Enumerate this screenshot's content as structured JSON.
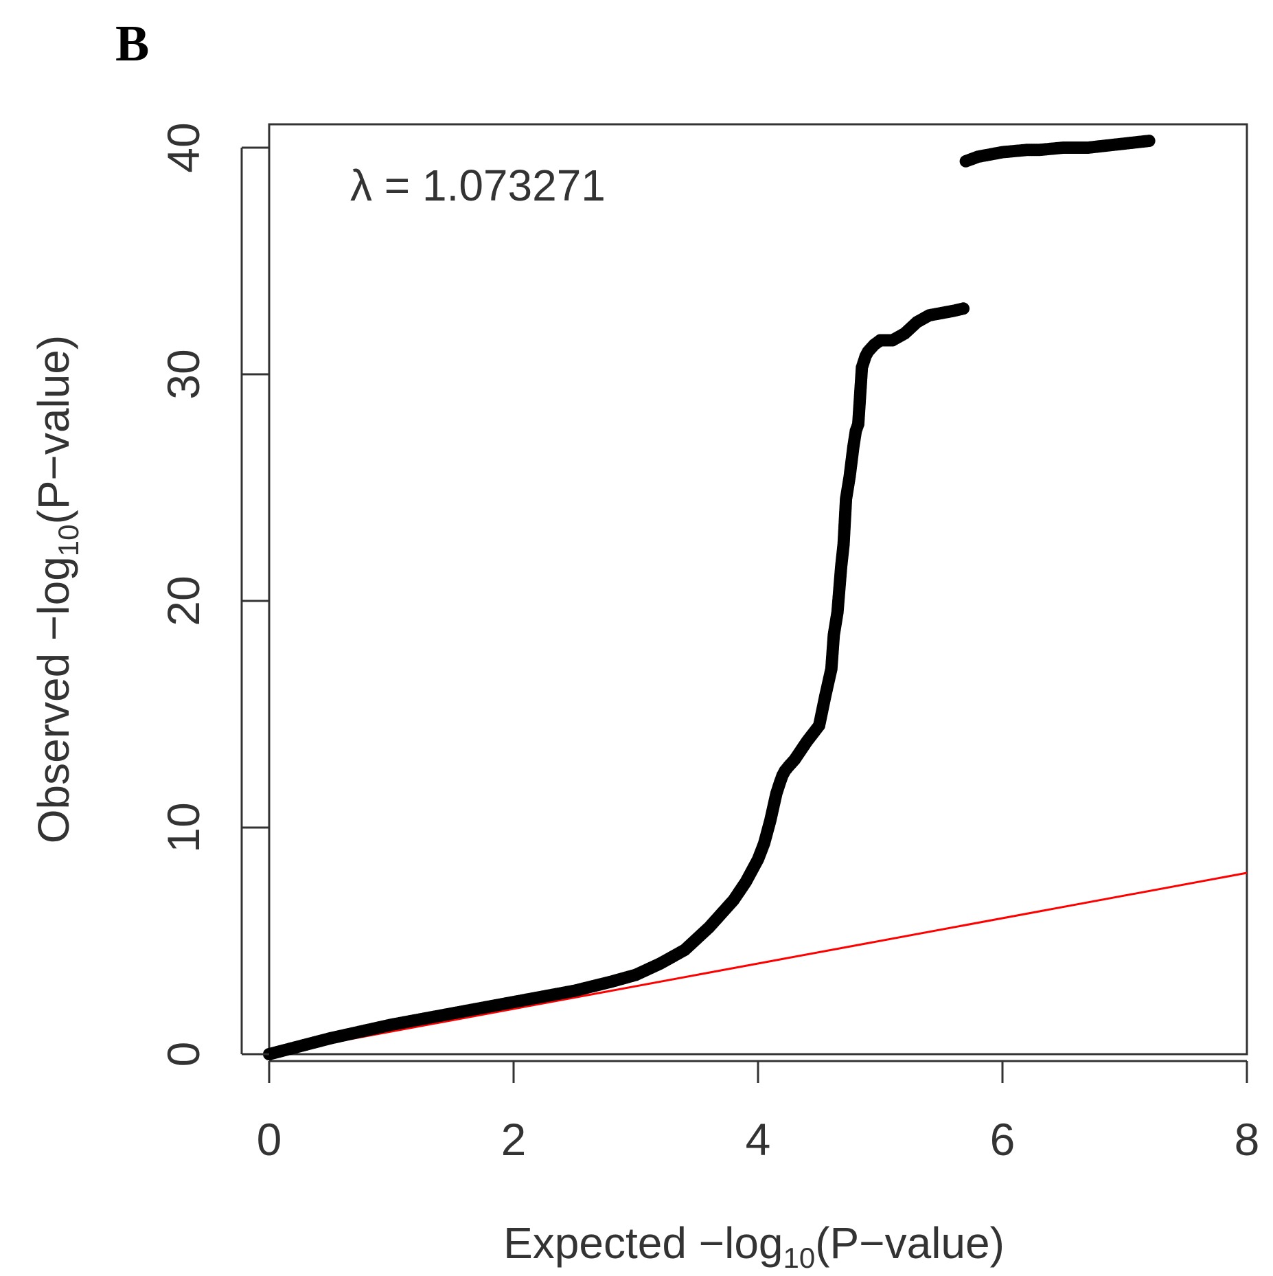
{
  "panel_label": "B",
  "chart_data": {
    "type": "scatter",
    "title": "",
    "xlabel": "Expected −log10(P−value)",
    "ylabel": "Observed −log10(P−value)",
    "xlabel_parts": {
      "prefix": "Expected −log",
      "sub": "10",
      "suffix": "(P−value)"
    },
    "ylabel_parts": {
      "prefix": "Observed −log",
      "sub": "10",
      "suffix": "(P−value)"
    },
    "xlim": [
      0,
      8
    ],
    "ylim": [
      0,
      40
    ],
    "x_ticks": [
      0,
      2,
      4,
      6,
      8
    ],
    "x_tick_labels": [
      "0",
      "2",
      "4",
      "6",
      "8"
    ],
    "y_ticks": [
      0,
      10,
      20,
      30,
      40
    ],
    "y_tick_labels": [
      "0",
      "10",
      "20",
      "30",
      "40"
    ],
    "annotation": "λ = 1.073271",
    "reference_line": {
      "color": "#ff0000",
      "x": [
        0,
        8
      ],
      "y": [
        0,
        8
      ]
    },
    "point_color": "#000000",
    "series": [
      {
        "name": "observed",
        "x": [
          0.0,
          0.5,
          1.0,
          1.5,
          2.0,
          2.5,
          2.8,
          3.0,
          3.2,
          3.4,
          3.5,
          3.6,
          3.7,
          3.8,
          3.9,
          4.0,
          4.05,
          4.1,
          4.15,
          4.18,
          4.2,
          4.22,
          4.25,
          4.3,
          4.4,
          4.5,
          4.55,
          4.6,
          4.62,
          4.65,
          4.68,
          4.7,
          4.72,
          4.75,
          4.78,
          4.8,
          4.82,
          4.85,
          4.88,
          4.9,
          4.95,
          5.0,
          5.1,
          5.2,
          5.3,
          5.4,
          5.5,
          5.6,
          5.68,
          5.7,
          5.8,
          5.9,
          6.0,
          6.2,
          6.3,
          6.5,
          6.7,
          7.2
        ],
        "y": [
          0.0,
          0.7,
          1.3,
          1.8,
          2.3,
          2.8,
          3.2,
          3.5,
          4.0,
          4.6,
          5.1,
          5.6,
          6.2,
          6.8,
          7.6,
          8.6,
          9.3,
          10.3,
          11.5,
          12.0,
          12.3,
          12.5,
          12.7,
          13.0,
          13.8,
          14.5,
          15.8,
          17.0,
          18.5,
          19.5,
          21.5,
          22.5,
          24.5,
          25.5,
          26.8,
          27.5,
          27.8,
          30.3,
          30.8,
          31.0,
          31.3,
          31.5,
          31.5,
          31.8,
          32.3,
          32.6,
          32.7,
          32.8,
          32.9,
          39.4,
          39.6,
          39.7,
          39.8,
          39.9,
          39.9,
          40.0,
          40.0,
          40.3
        ]
      }
    ]
  }
}
